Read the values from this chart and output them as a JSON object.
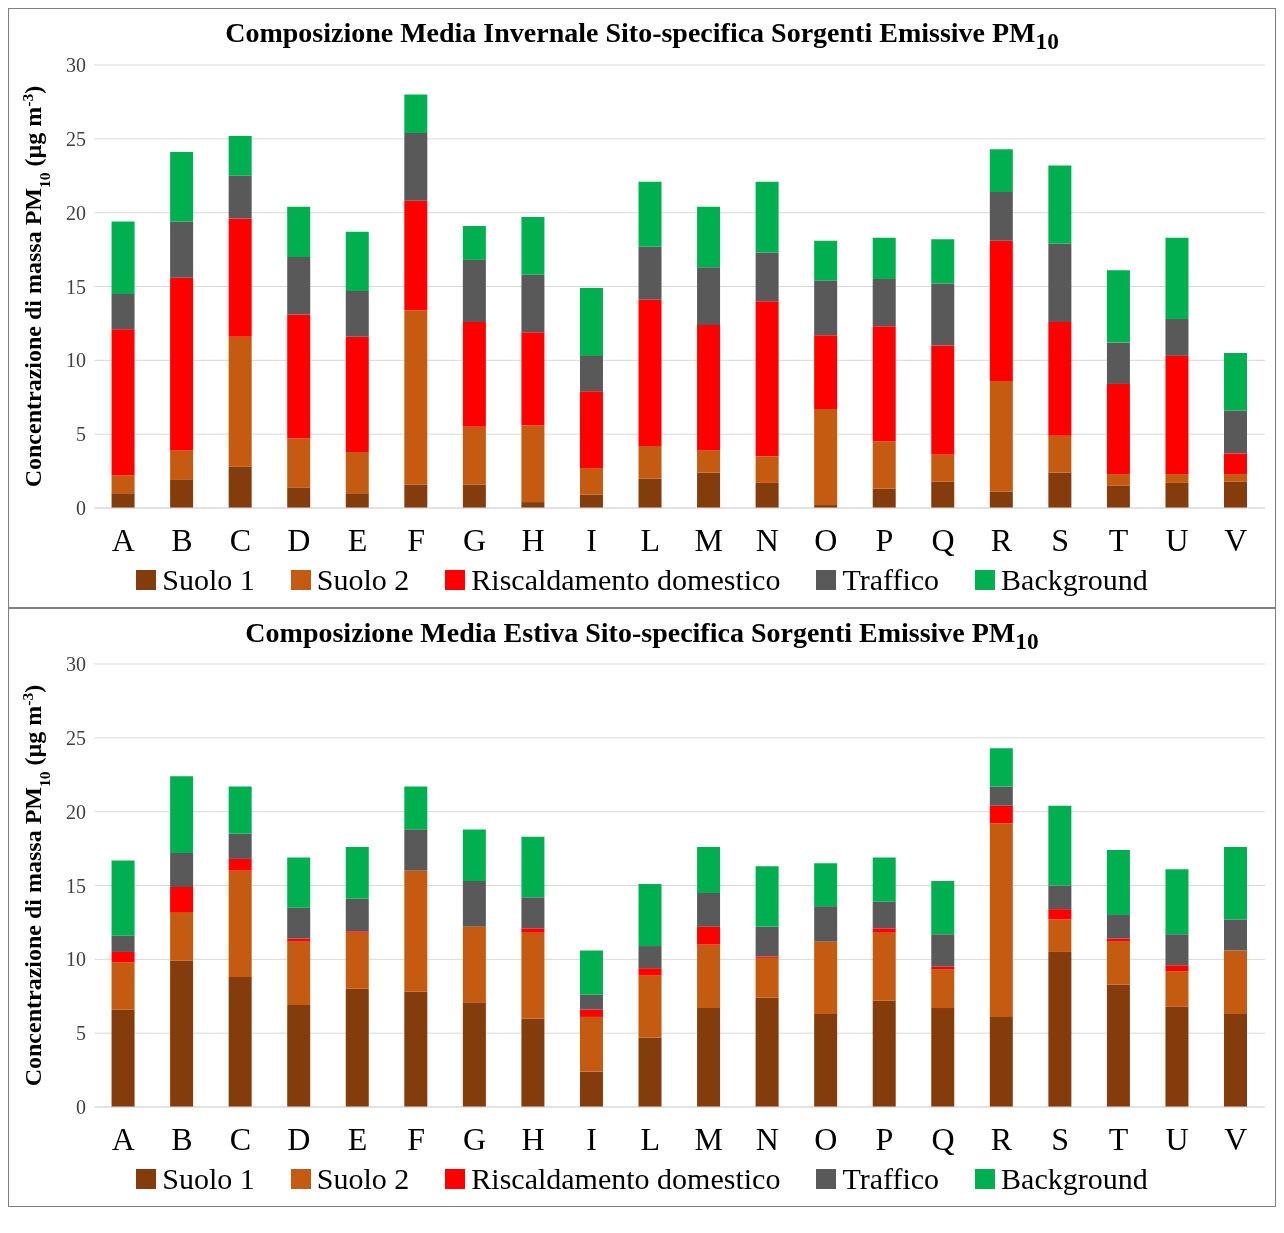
{
  "chart_data": [
    {
      "type": "bar",
      "stacked": true,
      "title": "Composizione Media Invernale Sito-specifica Sorgenti Emissive PM$_{10}$",
      "ylabel": "Concentrazione di massa PM$_{10}$ (µg m$^{-3}$)",
      "categories": [
        "A",
        "B",
        "C",
        "D",
        "E",
        "F",
        "G",
        "H",
        "I",
        "L",
        "M",
        "N",
        "O",
        "P",
        "Q",
        "R",
        "S",
        "T",
        "U",
        "V"
      ],
      "series": [
        {
          "name": "Suolo 1",
          "color": "#843c0c",
          "values": [
            1.0,
            1.9,
            2.8,
            1.4,
            1.0,
            1.6,
            1.6,
            0.4,
            0.9,
            2.0,
            2.4,
            1.7,
            0.2,
            1.3,
            1.8,
            1.1,
            2.4,
            1.5,
            1.7,
            1.8
          ]
        },
        {
          "name": "Suolo 2",
          "color": "#c55a11",
          "values": [
            1.2,
            2.0,
            8.8,
            3.3,
            2.8,
            11.8,
            3.9,
            5.2,
            1.8,
            2.2,
            1.5,
            1.8,
            6.5,
            3.2,
            1.8,
            7.5,
            2.5,
            0.8,
            0.6,
            0.5
          ]
        },
        {
          "name": "Riscaldamento domestico",
          "color": "#ff0000",
          "values": [
            9.9,
            11.7,
            8.0,
            8.4,
            7.8,
            7.4,
            7.1,
            6.3,
            5.2,
            9.9,
            8.5,
            10.5,
            5.0,
            7.8,
            7.4,
            9.5,
            7.7,
            6.1,
            8.0,
            1.4
          ]
        },
        {
          "name": "Traffico",
          "color": "#595959",
          "values": [
            2.4,
            3.8,
            2.9,
            3.9,
            3.1,
            4.6,
            4.2,
            3.9,
            2.4,
            3.6,
            3.9,
            3.3,
            3.7,
            3.2,
            4.2,
            3.3,
            5.3,
            2.8,
            2.5,
            2.9
          ]
        },
        {
          "name": "Background",
          "color": "#00b050",
          "values": [
            4.9,
            4.7,
            2.7,
            3.4,
            4.0,
            2.6,
            2.3,
            3.9,
            4.6,
            4.4,
            4.1,
            4.8,
            2.7,
            2.8,
            3.0,
            2.9,
            5.3,
            4.9,
            5.5,
            3.9
          ]
        }
      ],
      "ylim": [
        0,
        30
      ],
      "yticks": [
        0,
        5,
        10,
        15,
        20,
        25,
        30
      ],
      "grid": "y",
      "legend": "bottom"
    },
    {
      "type": "bar",
      "stacked": true,
      "title": "Composizione Media Estiva Sito-specifica Sorgenti Emissive PM$_{10}$",
      "ylabel": "Concentrazione di massa PM$_{10}$ (µg m$^{-3}$)",
      "categories": [
        "A",
        "B",
        "C",
        "D",
        "E",
        "F",
        "G",
        "H",
        "I",
        "L",
        "M",
        "N",
        "O",
        "P",
        "Q",
        "R",
        "S",
        "T",
        "U",
        "V"
      ],
      "series": [
        {
          "name": "Suolo 1",
          "color": "#843c0c",
          "values": [
            6.6,
            9.9,
            8.8,
            6.9,
            8.0,
            7.8,
            7.1,
            6.0,
            2.4,
            4.7,
            6.7,
            7.4,
            6.3,
            7.2,
            6.7,
            6.1,
            10.5,
            8.3,
            6.8,
            6.3
          ]
        },
        {
          "name": "Suolo 2",
          "color": "#c55a11",
          "values": [
            3.2,
            3.3,
            7.2,
            4.3,
            3.8,
            8.2,
            5.1,
            5.8,
            3.7,
            4.2,
            4.3,
            2.7,
            4.9,
            4.6,
            2.6,
            13.1,
            2.2,
            2.9,
            2.4,
            4.3
          ]
        },
        {
          "name": "Riscaldamento domestico",
          "color": "#ff0000",
          "values": [
            0.7,
            1.7,
            0.8,
            0.2,
            0.1,
            0,
            0,
            0.3,
            0.5,
            0.5,
            1.2,
            0.1,
            0,
            0.3,
            0.2,
            1.2,
            0.7,
            0.2,
            0.4,
            0
          ]
        },
        {
          "name": "Traffico",
          "color": "#595959",
          "values": [
            1.1,
            2.3,
            1.7,
            2.1,
            2.2,
            2.8,
            3.1,
            2.1,
            1.0,
            1.5,
            2.3,
            2.0,
            2.4,
            1.8,
            2.2,
            1.3,
            1.6,
            1.6,
            2.1,
            2.1
          ]
        },
        {
          "name": "Background",
          "color": "#00b050",
          "values": [
            5.1,
            5.2,
            3.2,
            3.4,
            3.5,
            2.9,
            3.5,
            4.1,
            3.0,
            4.2,
            3.1,
            4.1,
            2.9,
            3.0,
            3.6,
            2.6,
            5.4,
            4.4,
            4.4,
            4.9
          ]
        }
      ],
      "ylim": [
        0,
        30
      ],
      "yticks": [
        0,
        5,
        10,
        15,
        20,
        25,
        30
      ],
      "grid": "y",
      "legend": "bottom"
    }
  ]
}
